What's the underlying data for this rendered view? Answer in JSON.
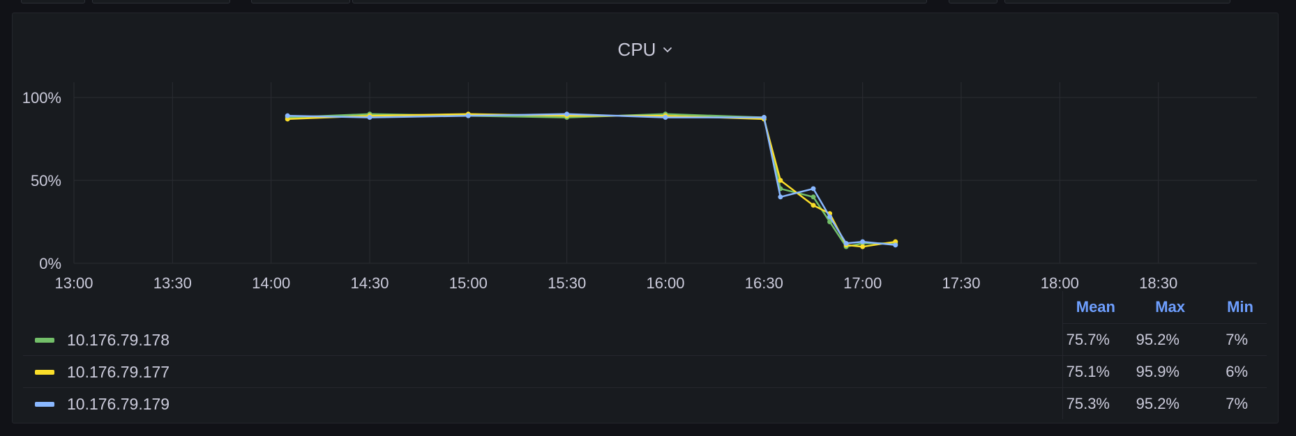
{
  "panel": {
    "title": "CPU"
  },
  "legend": {
    "headers": [
      "Mean",
      "Max",
      "Min"
    ],
    "rows": [
      {
        "name": "10.176.79.178",
        "color": "#73bf69",
        "mean": "75.7%",
        "max": "95.2%",
        "min": "7%"
      },
      {
        "name": "10.176.79.177",
        "color": "#fade2a",
        "mean": "75.1%",
        "max": "95.9%",
        "min": "6%"
      },
      {
        "name": "10.176.79.179",
        "color": "#8ab8ff",
        "mean": "75.3%",
        "max": "95.2%",
        "min": "7%"
      }
    ]
  },
  "chart_data": {
    "type": "line",
    "title": "CPU",
    "ylim": [
      0,
      100
    ],
    "y_ticks": [
      "0%",
      "50%",
      "100%"
    ],
    "x_ticks": [
      "13:00",
      "13:30",
      "14:00",
      "14:30",
      "15:00",
      "15:30",
      "16:00",
      "16:30",
      "17:00",
      "17:30",
      "18:00",
      "18:30"
    ],
    "grid": true,
    "legend_placement": "bottom",
    "x": [
      "14:05",
      "14:30",
      "15:00",
      "15:30",
      "16:00",
      "16:30",
      "16:35",
      "16:45",
      "16:50",
      "16:55",
      "17:00",
      "17:10"
    ],
    "series": [
      {
        "name": "10.176.79.178",
        "color": "#73bf69",
        "values": [
          88,
          90,
          89,
          88,
          90,
          88,
          45,
          40,
          25,
          10,
          12,
          12
        ]
      },
      {
        "name": "10.176.79.177",
        "color": "#fade2a",
        "values": [
          87,
          89,
          90,
          89,
          89,
          87,
          50,
          35,
          30,
          11,
          10,
          13
        ]
      },
      {
        "name": "10.176.79.179",
        "color": "#8ab8ff",
        "values": [
          89,
          88,
          89,
          90,
          88,
          88,
          40,
          45,
          28,
          12,
          13,
          11
        ]
      }
    ]
  }
}
